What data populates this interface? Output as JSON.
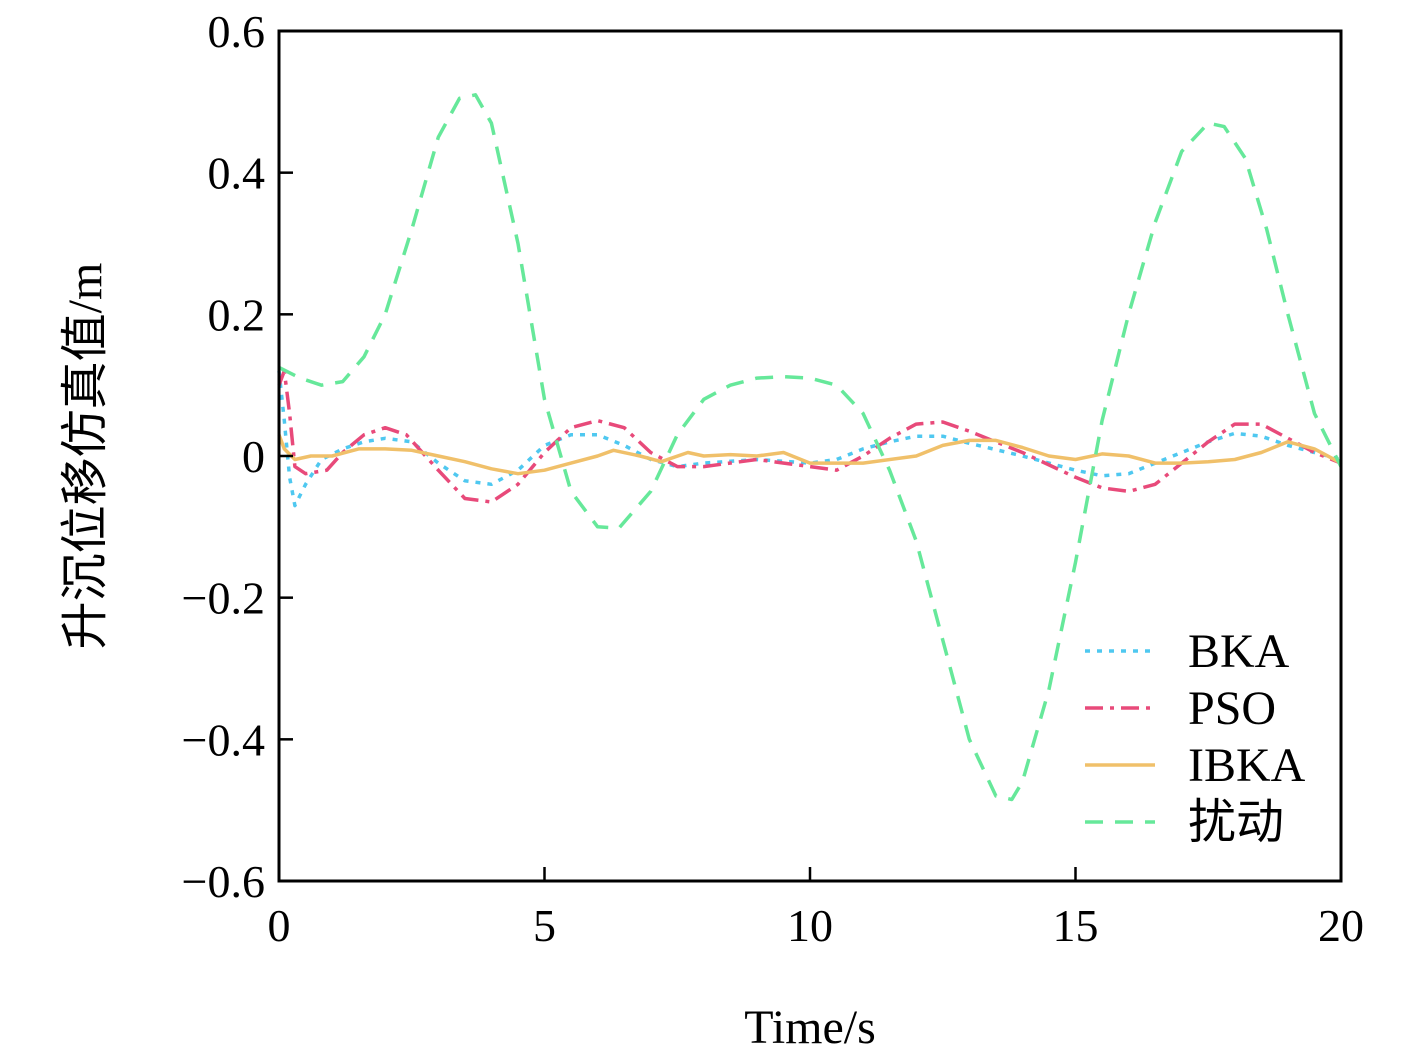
{
  "chart_data": {
    "type": "line",
    "title": "",
    "xlabel": "Time/s",
    "ylabel": "升沉位移仿真值/m",
    "xlim": [
      0,
      20
    ],
    "ylim": [
      -0.6,
      0.6
    ],
    "x_ticks": [
      0,
      5,
      10,
      15,
      20
    ],
    "y_ticks": [
      -0.6,
      -0.4,
      -0.2,
      0,
      0.2,
      0.4,
      0.6
    ],
    "x_tick_labels": [
      "0",
      "5",
      "10",
      "15",
      "20"
    ],
    "y_tick_labels": [
      "−0.6",
      "−0.4",
      "−0.2",
      "0",
      "0.2",
      "0.4",
      "0.6"
    ],
    "grid": false,
    "legend_position": "bottom-right",
    "series": [
      {
        "name": "BKA",
        "color": "#4fc8f0",
        "dash": "dotted",
        "points": [
          [
            0,
            0.12
          ],
          [
            0.1,
            0.05
          ],
          [
            0.2,
            -0.03
          ],
          [
            0.3,
            -0.07
          ],
          [
            0.5,
            -0.04
          ],
          [
            0.8,
            -0.005
          ],
          [
            1.2,
            0.01
          ],
          [
            1.6,
            0.02
          ],
          [
            2.0,
            0.025
          ],
          [
            2.5,
            0.02
          ],
          [
            3.0,
            -0.01
          ],
          [
            3.5,
            -0.035
          ],
          [
            4.0,
            -0.04
          ],
          [
            4.5,
            -0.02
          ],
          [
            5.0,
            0.015
          ],
          [
            5.5,
            0.03
          ],
          [
            6.0,
            0.03
          ],
          [
            6.5,
            0.015
          ],
          [
            7.0,
            -0.005
          ],
          [
            7.5,
            -0.015
          ],
          [
            8.0,
            -0.01
          ],
          [
            9.0,
            -0.005
          ],
          [
            10.0,
            -0.01
          ],
          [
            10.5,
            -0.005
          ],
          [
            11.0,
            0.01
          ],
          [
            11.5,
            0.02
          ],
          [
            12.0,
            0.028
          ],
          [
            12.5,
            0.028
          ],
          [
            13.0,
            0.018
          ],
          [
            14.0,
            0.0
          ],
          [
            15.0,
            -0.02
          ],
          [
            15.5,
            -0.028
          ],
          [
            16.0,
            -0.025
          ],
          [
            16.5,
            -0.01
          ],
          [
            17.0,
            0.005
          ],
          [
            17.5,
            0.02
          ],
          [
            18.0,
            0.032
          ],
          [
            18.5,
            0.028
          ],
          [
            19.0,
            0.015
          ],
          [
            19.5,
            0.005
          ],
          [
            20.0,
            -0.005
          ]
        ]
      },
      {
        "name": "PSO",
        "color": "#e84a7a",
        "dash": "dashdot",
        "points": [
          [
            0,
            0.1
          ],
          [
            0.1,
            0.12
          ],
          [
            0.2,
            0.06
          ],
          [
            0.3,
            -0.015
          ],
          [
            0.5,
            -0.025
          ],
          [
            0.9,
            -0.02
          ],
          [
            1.2,
            0.005
          ],
          [
            1.6,
            0.03
          ],
          [
            2.0,
            0.04
          ],
          [
            2.4,
            0.03
          ],
          [
            3.0,
            -0.02
          ],
          [
            3.5,
            -0.06
          ],
          [
            4.0,
            -0.065
          ],
          [
            4.5,
            -0.04
          ],
          [
            5.0,
            0.005
          ],
          [
            5.5,
            0.04
          ],
          [
            6.0,
            0.05
          ],
          [
            6.5,
            0.04
          ],
          [
            7.0,
            0.005
          ],
          [
            7.5,
            -0.015
          ],
          [
            8.0,
            -0.015
          ],
          [
            9.0,
            -0.005
          ],
          [
            10.0,
            -0.015
          ],
          [
            10.5,
            -0.02
          ],
          [
            11.0,
            0.0
          ],
          [
            11.5,
            0.025
          ],
          [
            12.0,
            0.045
          ],
          [
            12.5,
            0.048
          ],
          [
            13.0,
            0.035
          ],
          [
            14.0,
            0.005
          ],
          [
            15.0,
            -0.03
          ],
          [
            15.5,
            -0.045
          ],
          [
            16.0,
            -0.05
          ],
          [
            16.5,
            -0.04
          ],
          [
            17.0,
            -0.01
          ],
          [
            17.5,
            0.02
          ],
          [
            18.0,
            0.045
          ],
          [
            18.5,
            0.045
          ],
          [
            19.0,
            0.025
          ],
          [
            19.5,
            0.005
          ],
          [
            20.0,
            -0.01
          ]
        ]
      },
      {
        "name": "IBKA",
        "color": "#f0c06a",
        "dash": "solid",
        "points": [
          [
            0,
            0.03
          ],
          [
            0.1,
            0.01
          ],
          [
            0.3,
            -0.005
          ],
          [
            0.6,
            0.0
          ],
          [
            1.0,
            0.0
          ],
          [
            1.5,
            0.01
          ],
          [
            2.0,
            0.01
          ],
          [
            2.5,
            0.008
          ],
          [
            3.0,
            0.0
          ],
          [
            3.5,
            -0.008
          ],
          [
            4.0,
            -0.018
          ],
          [
            4.5,
            -0.025
          ],
          [
            5.0,
            -0.02
          ],
          [
            5.5,
            -0.01
          ],
          [
            6.0,
            0.0
          ],
          [
            6.3,
            0.008
          ],
          [
            6.8,
            0.0
          ],
          [
            7.2,
            -0.008
          ],
          [
            7.7,
            0.005
          ],
          [
            8.0,
            0.0
          ],
          [
            8.5,
            0.002
          ],
          [
            9.0,
            0.0
          ],
          [
            9.5,
            0.005
          ],
          [
            10.0,
            -0.01
          ],
          [
            11.0,
            -0.01
          ],
          [
            12.0,
            0.0
          ],
          [
            12.5,
            0.015
          ],
          [
            13.0,
            0.022
          ],
          [
            13.5,
            0.022
          ],
          [
            14.0,
            0.012
          ],
          [
            14.5,
            0.0
          ],
          [
            15.0,
            -0.005
          ],
          [
            15.5,
            0.003
          ],
          [
            16.0,
            0.0
          ],
          [
            16.5,
            -0.01
          ],
          [
            17.0,
            -0.01
          ],
          [
            17.5,
            -0.008
          ],
          [
            18.0,
            -0.005
          ],
          [
            18.5,
            0.005
          ],
          [
            19.0,
            0.02
          ],
          [
            19.5,
            0.01
          ],
          [
            20.0,
            -0.01
          ]
        ]
      },
      {
        "name": "扰动",
        "color": "#66e89a",
        "dash": "dashed",
        "points": [
          [
            0,
            0.125
          ],
          [
            0.4,
            0.11
          ],
          [
            0.8,
            0.1
          ],
          [
            1.2,
            0.105
          ],
          [
            1.6,
            0.14
          ],
          [
            2.0,
            0.2
          ],
          [
            2.5,
            0.32
          ],
          [
            3.0,
            0.45
          ],
          [
            3.4,
            0.505
          ],
          [
            3.7,
            0.51
          ],
          [
            4.0,
            0.47
          ],
          [
            4.5,
            0.3
          ],
          [
            5.0,
            0.08
          ],
          [
            5.5,
            -0.05
          ],
          [
            6.0,
            -0.1
          ],
          [
            6.4,
            -0.102
          ],
          [
            7.0,
            -0.05
          ],
          [
            7.5,
            0.03
          ],
          [
            8.0,
            0.08
          ],
          [
            8.5,
            0.1
          ],
          [
            9.0,
            0.11
          ],
          [
            9.5,
            0.112
          ],
          [
            10.0,
            0.11
          ],
          [
            10.5,
            0.1
          ],
          [
            11.0,
            0.06
          ],
          [
            11.5,
            -0.02
          ],
          [
            12.0,
            -0.12
          ],
          [
            12.5,
            -0.26
          ],
          [
            13.0,
            -0.4
          ],
          [
            13.5,
            -0.48
          ],
          [
            13.8,
            -0.485
          ],
          [
            14.0,
            -0.46
          ],
          [
            14.5,
            -0.33
          ],
          [
            15.0,
            -0.15
          ],
          [
            15.5,
            0.05
          ],
          [
            16.0,
            0.2
          ],
          [
            16.5,
            0.33
          ],
          [
            17.0,
            0.43
          ],
          [
            17.5,
            0.47
          ],
          [
            17.8,
            0.465
          ],
          [
            18.2,
            0.42
          ],
          [
            18.6,
            0.32
          ],
          [
            19.0,
            0.2
          ],
          [
            19.5,
            0.06
          ],
          [
            20.0,
            -0.015
          ]
        ]
      }
    ]
  }
}
